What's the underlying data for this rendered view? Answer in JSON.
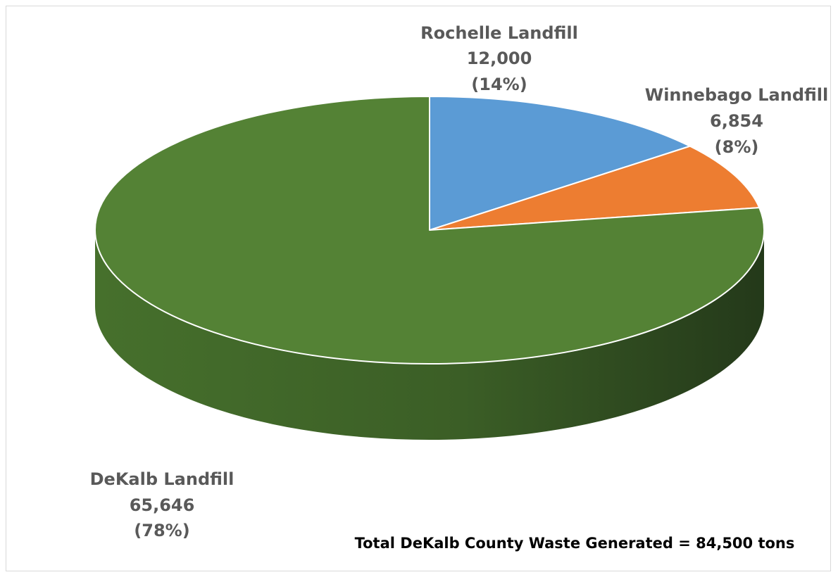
{
  "chart_data": {
    "type": "pie",
    "title": "",
    "categories": [
      "Rochelle Landfill",
      "Winnebago Landfill",
      "DeKalb Landfill"
    ],
    "values": [
      12000,
      6854,
      65646
    ],
    "labels": [
      {
        "name": "Rochelle Landfill",
        "value": "12,000",
        "percent": "(14%)"
      },
      {
        "name": "Winnebago Landfill",
        "value": "6,854",
        "percent": "(8%)"
      },
      {
        "name": "DeKalb Landfill",
        "value": "65,646",
        "percent": "(78%)"
      }
    ],
    "colors": [
      "#5b9bd5",
      "#ed7d31",
      "#548235"
    ],
    "side_colors": [
      "#41719c",
      "#ae5a21",
      "#3b5e26"
    ],
    "style": "3d",
    "legend": "none",
    "annotation": "Total DeKalb County Waste Generated = 84,500 tons"
  }
}
